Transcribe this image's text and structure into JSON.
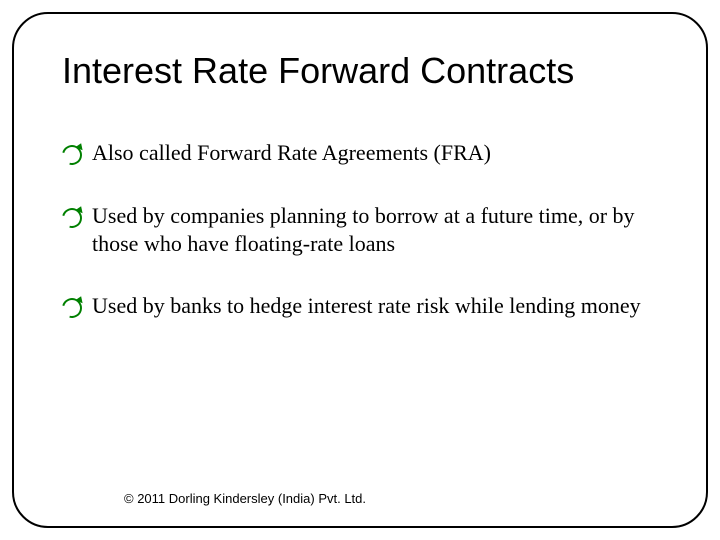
{
  "slide": {
    "title": "Interest Rate Forward Contracts",
    "bullets": [
      "Also called Forward Rate Agreements (FRA)",
      "Used by companies planning to borrow at a future time, or by those who have floating-rate loans",
      "Used by banks to hedge interest rate risk while lending money"
    ],
    "copyright": "© 2011 Dorling Kindersley (India) Pvt. Ltd."
  },
  "style": {
    "background_color": "#ffffff",
    "frame_border_color": "#000000",
    "frame_border_width": 2,
    "frame_border_radius": 36,
    "title_font": "Arial",
    "title_fontsize": 36,
    "title_color": "#000000",
    "body_font": "Times New Roman",
    "body_fontsize": 22,
    "body_color": "#000000",
    "bullet_icon": "curved-arrow",
    "bullet_color": "#008000",
    "copyright_font": "Arial",
    "copyright_fontsize": 13
  }
}
